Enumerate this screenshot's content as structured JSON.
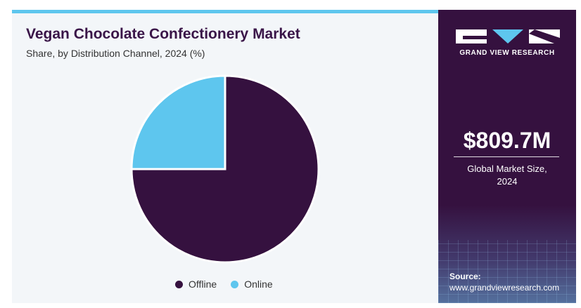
{
  "chart_data": {
    "type": "pie",
    "title": "Vegan Chocolate Confectionery Market",
    "subtitle": "Share, by Distribution Channel, 2024 (%)",
    "slices": [
      {
        "label": "Offline",
        "value": 75,
        "color": "#35113f"
      },
      {
        "label": "Online",
        "value": 25,
        "color": "#5ec6ee"
      }
    ],
    "legend": "bottom-center"
  },
  "sidebar": {
    "brand": "GRAND VIEW RESEARCH",
    "market_value": "$809.7M",
    "market_caption_line1": "Global Market Size,",
    "market_caption_line2": "2024",
    "source_label": "Source:",
    "source_url": "www.grandviewresearch.com"
  },
  "colors": {
    "accent": "#5ec6ee",
    "brand_dark": "#35113f",
    "title": "#3a1548"
  }
}
